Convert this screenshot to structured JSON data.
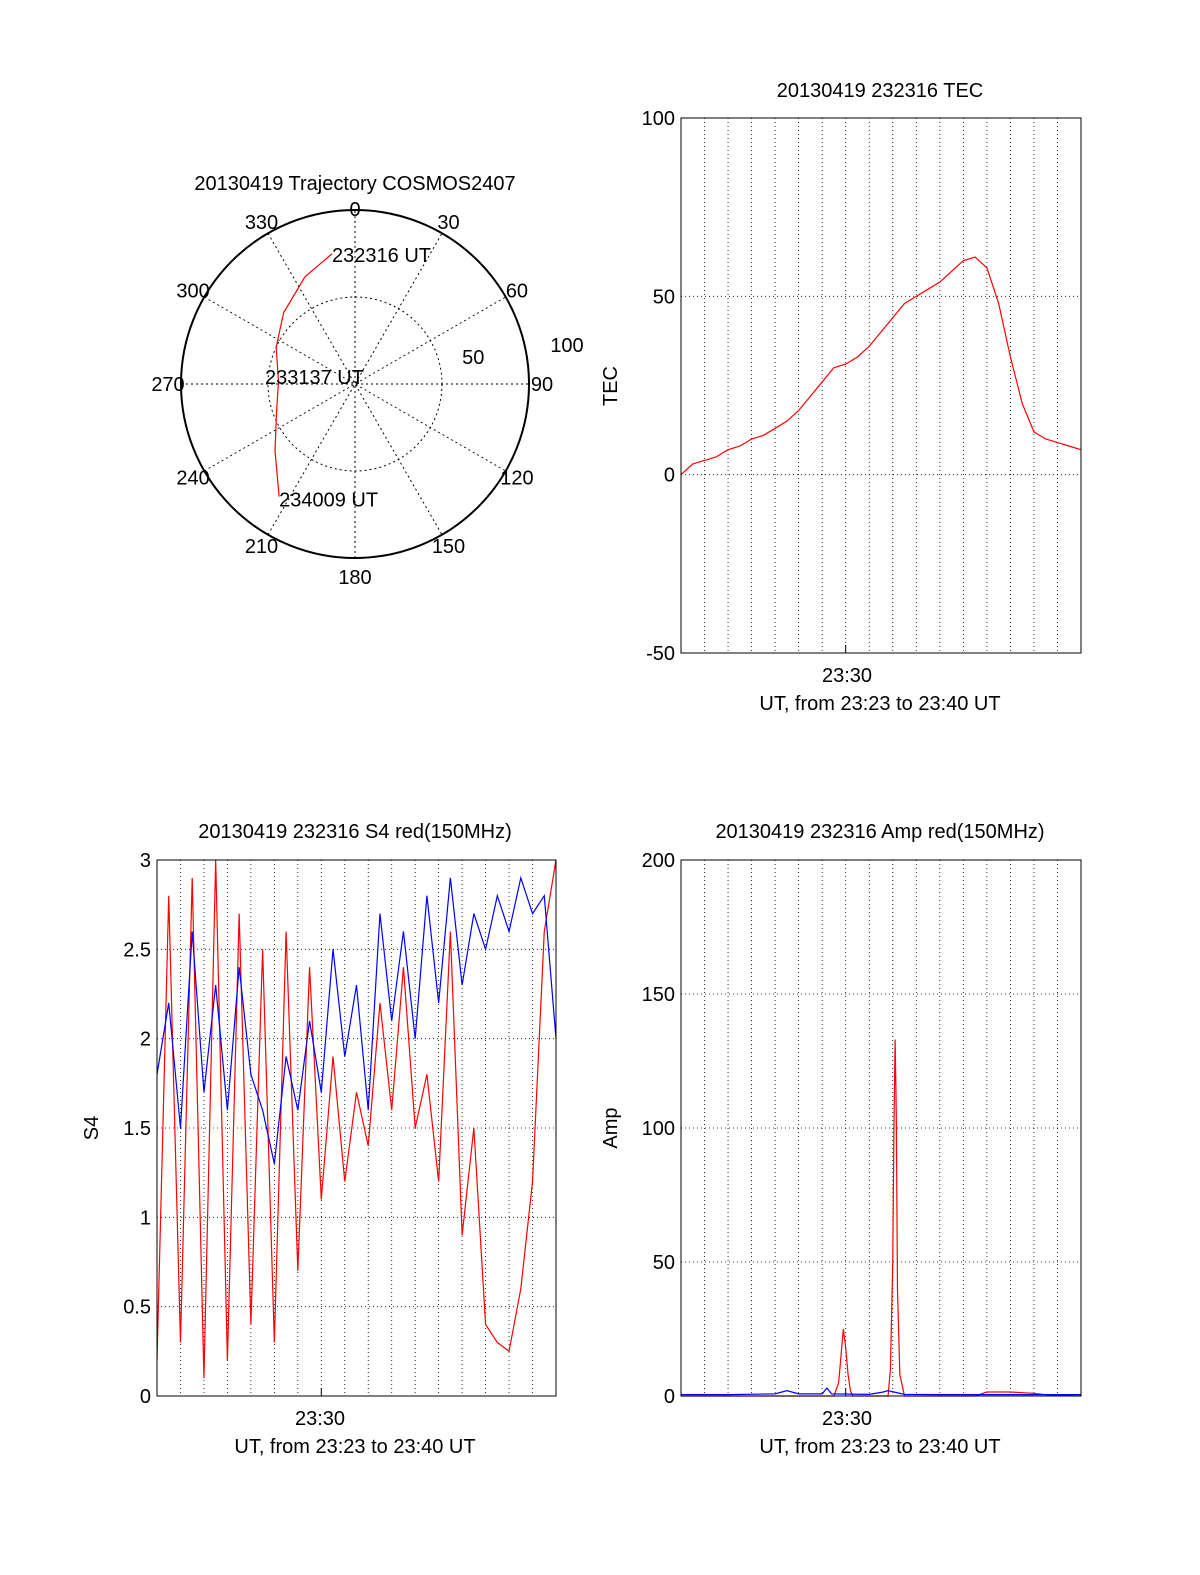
{
  "chart_data": [
    {
      "type": "polar",
      "title": "20130419 Trajectory COSMOS2407",
      "azimuth_labels": [
        "0",
        "30",
        "60",
        "90",
        "120",
        "150",
        "180",
        "210",
        "240",
        "270",
        "300",
        "330"
      ],
      "radial_labels": [
        "50",
        "100"
      ],
      "series": [
        {
          "color": "#ff0000",
          "points": [
            {
              "az": 350,
              "el": 14
            },
            {
              "az": 335,
              "el": 22
            },
            {
              "az": 315,
              "el": 32
            },
            {
              "az": 295,
              "el": 40
            },
            {
              "az": 272,
              "el": 46
            },
            {
              "az": 250,
              "el": 42
            },
            {
              "az": 230,
              "el": 30
            },
            {
              "az": 214,
              "el": 12
            }
          ]
        }
      ],
      "annotations": [
        "232316 UT",
        "233137 UT",
        "234009 UT"
      ]
    },
    {
      "type": "line",
      "title": "20130419 232316 TEC",
      "ylabel": "TEC",
      "xlabel": "UT, from 23:23 to 23:40 UT",
      "xtick_labels": [
        "23:30"
      ],
      "ylim": [
        -50,
        100
      ],
      "yticks": [
        -50,
        0,
        50,
        100
      ],
      "grid": true,
      "series": [
        {
          "color": "#ff0000",
          "x_minutes": [
            0,
            0.5,
            1,
            1.5,
            2,
            2.5,
            3,
            3.5,
            4,
            4.5,
            5,
            5.5,
            6,
            6.5,
            7,
            7.5,
            8,
            8.5,
            9,
            9.5,
            10,
            10.5,
            11,
            11.5,
            12,
            12.5,
            13,
            13.5,
            14,
            14.5,
            15,
            15.5,
            16,
            16.5,
            17
          ],
          "values": [
            0,
            3,
            4,
            5,
            7,
            8,
            10,
            11,
            13,
            15,
            18,
            22,
            26,
            30,
            31,
            33,
            36,
            40,
            44,
            48,
            50,
            52,
            54,
            57,
            60,
            61,
            58,
            48,
            33,
            20,
            12,
            10,
            9,
            8,
            7
          ]
        }
      ]
    },
    {
      "type": "line",
      "title": "20130419 232316 S4 red(150MHz)",
      "ylabel": "S4",
      "xlabel": "UT, from 23:23 to 23:40 UT",
      "xtick_labels": [
        "23:30"
      ],
      "ylim": [
        0,
        3
      ],
      "yticks": [
        "0",
        "0.5",
        "1",
        "1.5",
        "2",
        "2.5",
        "3"
      ],
      "grid": true,
      "series": [
        {
          "color": "#ff0000",
          "x_minutes": [
            0,
            0.5,
            1,
            1.5,
            2,
            2.5,
            3,
            3.5,
            4,
            4.5,
            5,
            5.5,
            6,
            6.5,
            7,
            7.5,
            8,
            8.5,
            9,
            9.5,
            10,
            10.5,
            11,
            11.5,
            12,
            12.5,
            13,
            13.5,
            14,
            14.5,
            15,
            15.5,
            16,
            16.5,
            17
          ],
          "values": [
            0.2,
            2.8,
            0.3,
            2.9,
            0.1,
            3.0,
            0.2,
            2.7,
            0.4,
            2.5,
            0.3,
            2.6,
            0.7,
            2.4,
            1.1,
            1.9,
            1.2,
            1.7,
            1.4,
            2.2,
            1.6,
            2.4,
            1.5,
            1.8,
            1.2,
            2.6,
            0.9,
            1.5,
            0.4,
            0.3,
            0.25,
            0.6,
            1.2,
            2.6,
            3.0
          ]
        },
        {
          "color": "#0000ff",
          "x_minutes": [
            0,
            0.5,
            1,
            1.5,
            2,
            2.5,
            3,
            3.5,
            4,
            4.5,
            5,
            5.5,
            6,
            6.5,
            7,
            7.5,
            8,
            8.5,
            9,
            9.5,
            10,
            10.5,
            11,
            11.5,
            12,
            12.5,
            13,
            13.5,
            14,
            14.5,
            15,
            15.5,
            16,
            16.5,
            17
          ],
          "values": [
            1.8,
            2.2,
            1.5,
            2.6,
            1.7,
            2.3,
            1.6,
            2.4,
            1.8,
            1.6,
            1.3,
            1.9,
            1.6,
            2.1,
            1.7,
            2.5,
            1.9,
            2.3,
            1.6,
            2.7,
            2.1,
            2.6,
            2.0,
            2.8,
            2.2,
            2.9,
            2.3,
            2.7,
            2.5,
            2.8,
            2.6,
            2.9,
            2.7,
            2.8,
            2.0
          ]
        }
      ]
    },
    {
      "type": "line",
      "title": "20130419 232316 Amp red(150MHz)",
      "ylabel": "Amp",
      "xlabel": "UT, from 23:23 to 23:40 UT",
      "xtick_labels": [
        "23:30"
      ],
      "ylim": [
        0,
        200
      ],
      "yticks": [
        0,
        50,
        100,
        150,
        200
      ],
      "grid": true,
      "series": [
        {
          "color": "#ff0000",
          "x_minutes": [
            0,
            6.5,
            6.7,
            6.8,
            6.9,
            7.0,
            7.1,
            7.2,
            7.3,
            8.8,
            8.9,
            9.0,
            9.05,
            9.1,
            9.15,
            9.2,
            9.3,
            9.5,
            12.5,
            13,
            14,
            15,
            15.5,
            17
          ],
          "values": [
            0,
            0,
            5,
            15,
            25,
            18,
            8,
            2,
            0,
            0,
            10,
            50,
            100,
            133,
            105,
            40,
            8,
            0,
            0,
            1.5,
            1.5,
            1,
            0.5,
            0
          ]
        },
        {
          "color": "#0000ff",
          "x_minutes": [
            0,
            2,
            4,
            4.5,
            5,
            6,
            6.2,
            6.4,
            8,
            8.6,
            8.8,
            9.5,
            11,
            13,
            15,
            17
          ],
          "values": [
            0.5,
            0.5,
            0.8,
            2,
            0.8,
            0.8,
            3,
            0.8,
            0.6,
            1.5,
            2,
            0.6,
            0.5,
            0.5,
            0.5,
            0.5
          ]
        }
      ]
    }
  ]
}
